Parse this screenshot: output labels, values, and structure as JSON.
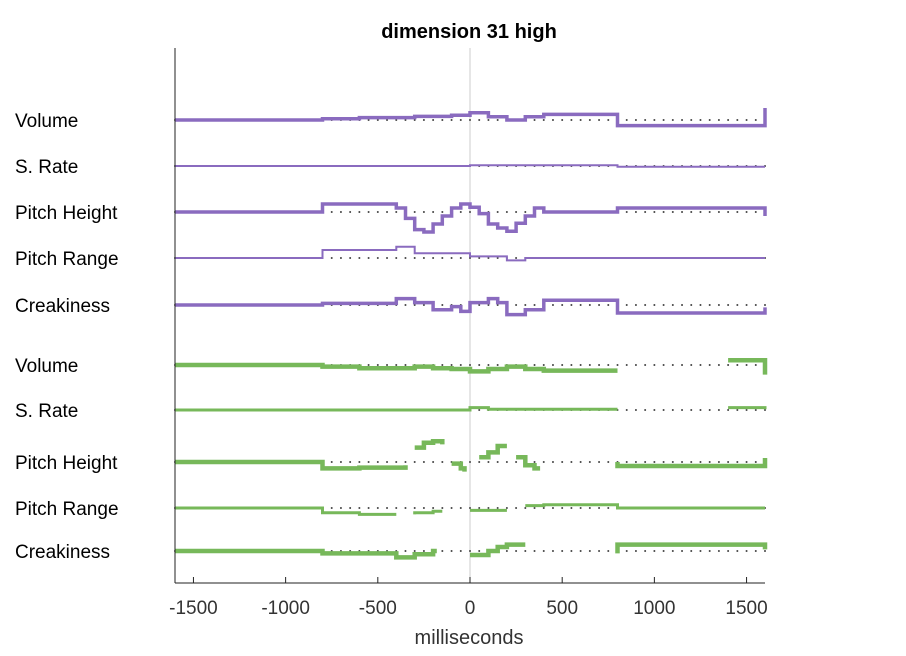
{
  "chart_data": {
    "type": "line",
    "title": "dimension 31 high",
    "xlabel": "milliseconds",
    "xlim": [
      -1600,
      1600
    ],
    "xticks": [
      -1500,
      -1000,
      -500,
      0,
      500,
      1000,
      1500
    ],
    "xtick_labels": [
      "-1500",
      "-1000",
      "-500",
      "0",
      "500",
      "1000",
      "1500"
    ],
    "zero_line": 0,
    "dot_spacing_ms": 50,
    "colors": {
      "purple": "#8a6bbf",
      "green": "#77b85a",
      "dots": "#444444"
    },
    "rows": [
      {
        "label": "Volume",
        "color": "purple",
        "width": 3.5,
        "points": [
          [
            -1600,
            0
          ],
          [
            -800,
            0
          ],
          [
            -800,
            1.5
          ],
          [
            -600,
            1.5
          ],
          [
            -600,
            3
          ],
          [
            -300,
            3
          ],
          [
            -300,
            4.5
          ],
          [
            -100,
            4.5
          ],
          [
            -100,
            6
          ],
          [
            0,
            6
          ],
          [
            0,
            9
          ],
          [
            100,
            9
          ],
          [
            100,
            4
          ],
          [
            200,
            4
          ],
          [
            200,
            0
          ],
          [
            300,
            0
          ],
          [
            300,
            4
          ],
          [
            400,
            4
          ],
          [
            400,
            7
          ],
          [
            800,
            7
          ],
          [
            800,
            -7
          ],
          [
            1600,
            -7
          ],
          [
            1600,
            15
          ]
        ]
      },
      {
        "label": "S. Rate",
        "color": "purple",
        "width": 2.0,
        "points": [
          [
            -1600,
            0
          ],
          [
            0,
            0
          ],
          [
            0,
            1
          ],
          [
            800,
            1
          ],
          [
            800,
            -1
          ],
          [
            1600,
            -1
          ]
        ]
      },
      {
        "label": "Pitch Height",
        "color": "purple",
        "width": 3.5,
        "points": [
          [
            -1600,
            0
          ],
          [
            -800,
            0
          ],
          [
            -800,
            10
          ],
          [
            -400,
            10
          ],
          [
            -400,
            5
          ],
          [
            -350,
            5
          ],
          [
            -350,
            -8
          ],
          [
            -300,
            -8
          ],
          [
            -300,
            -22
          ],
          [
            -250,
            -22
          ],
          [
            -250,
            -25
          ],
          [
            -200,
            -25
          ],
          [
            -200,
            -15
          ],
          [
            -150,
            -15
          ],
          [
            -150,
            -5
          ],
          [
            -100,
            -5
          ],
          [
            -100,
            5
          ],
          [
            -50,
            5
          ],
          [
            -50,
            10
          ],
          [
            0,
            10
          ],
          [
            0,
            6
          ],
          [
            50,
            6
          ],
          [
            50,
            -2
          ],
          [
            100,
            -2
          ],
          [
            100,
            -15
          ],
          [
            150,
            -15
          ],
          [
            150,
            -20
          ],
          [
            200,
            -20
          ],
          [
            200,
            -24
          ],
          [
            250,
            -24
          ],
          [
            250,
            -14
          ],
          [
            300,
            -14
          ],
          [
            300,
            -5
          ],
          [
            350,
            -5
          ],
          [
            350,
            5
          ],
          [
            400,
            5
          ],
          [
            400,
            0
          ],
          [
            800,
            0
          ],
          [
            800,
            5
          ],
          [
            1600,
            5
          ],
          [
            1600,
            -5
          ]
        ]
      },
      {
        "label": "Pitch Range",
        "color": "purple",
        "width": 2.0,
        "points": [
          [
            -1600,
            0
          ],
          [
            -800,
            0
          ],
          [
            -800,
            10
          ],
          [
            -400,
            10
          ],
          [
            -400,
            14
          ],
          [
            -300,
            14
          ],
          [
            -300,
            6
          ],
          [
            0,
            6
          ],
          [
            0,
            2
          ],
          [
            200,
            2
          ],
          [
            200,
            -3
          ],
          [
            300,
            -3
          ],
          [
            300,
            0
          ],
          [
            1600,
            0
          ]
        ]
      },
      {
        "label": "Creakiness",
        "color": "purple",
        "width": 3.5,
        "points": [
          [
            -1600,
            0
          ],
          [
            -800,
            0
          ],
          [
            -800,
            2
          ],
          [
            -400,
            2
          ],
          [
            -400,
            8
          ],
          [
            -300,
            8
          ],
          [
            -300,
            3
          ],
          [
            -200,
            3
          ],
          [
            -200,
            -6
          ],
          [
            -100,
            -6
          ],
          [
            -100,
            -2
          ],
          [
            -50,
            -2
          ],
          [
            -50,
            -8
          ],
          [
            0,
            -8
          ],
          [
            0,
            3
          ],
          [
            100,
            3
          ],
          [
            100,
            8
          ],
          [
            150,
            8
          ],
          [
            150,
            3
          ],
          [
            200,
            3
          ],
          [
            200,
            -12
          ],
          [
            300,
            -12
          ],
          [
            300,
            -6
          ],
          [
            400,
            -6
          ],
          [
            400,
            6
          ],
          [
            800,
            6
          ],
          [
            800,
            -10
          ],
          [
            1600,
            -10
          ],
          [
            1600,
            -3
          ]
        ]
      },
      {
        "label": "Volume",
        "color": "green",
        "width": 4.5,
        "points": [
          [
            -1600,
            0
          ],
          [
            -800,
            0
          ],
          [
            -800,
            -2
          ],
          [
            -600,
            -2
          ],
          [
            -600,
            -4
          ],
          [
            -300,
            -4
          ],
          [
            -300,
            -2
          ],
          [
            -200,
            -2
          ],
          [
            -200,
            -4
          ],
          [
            -100,
            -4
          ],
          [
            -100,
            -5
          ],
          [
            0,
            -5
          ],
          [
            0,
            -8
          ],
          [
            100,
            -8
          ],
          [
            100,
            -5
          ],
          [
            200,
            -5
          ],
          [
            200,
            -2
          ],
          [
            300,
            -2
          ],
          [
            300,
            -5
          ],
          [
            400,
            -5
          ],
          [
            400,
            -7
          ],
          [
            800,
            -7
          ],
          null,
          [
            1400,
            6
          ],
          [
            1600,
            6
          ],
          [
            1600,
            -12
          ]
        ]
      },
      {
        "label": "S. Rate",
        "color": "green",
        "width": 3.0,
        "points": [
          [
            -1600,
            0
          ],
          [
            0,
            0
          ],
          [
            0,
            3
          ],
          [
            100,
            3
          ],
          [
            100,
            1
          ],
          [
            800,
            1
          ],
          null,
          [
            1400,
            3
          ],
          [
            1600,
            3
          ],
          [
            1600,
            1
          ]
        ]
      },
      {
        "label": "Pitch Height",
        "color": "green",
        "width": 4.5,
        "points": [
          [
            -1600,
            0
          ],
          [
            -800,
            0
          ],
          [
            -800,
            -8
          ],
          [
            -600,
            -8
          ],
          [
            -600,
            -7
          ],
          [
            -350,
            -7
          ],
          [
            -350,
            -4
          ],
          null,
          [
            -300,
            18
          ],
          [
            -250,
            18
          ],
          [
            -250,
            24
          ],
          [
            -200,
            24
          ],
          [
            -200,
            26
          ],
          [
            -150,
            26
          ],
          [
            -150,
            22
          ],
          null,
          [
            -100,
            -2
          ],
          [
            -50,
            -2
          ],
          [
            -50,
            -8
          ],
          [
            -30,
            -8
          ],
          [
            -30,
            -12
          ],
          null,
          [
            50,
            6
          ],
          [
            100,
            6
          ],
          [
            100,
            12
          ],
          [
            150,
            12
          ],
          [
            150,
            20
          ],
          [
            200,
            20
          ],
          null,
          [
            250,
            6
          ],
          [
            300,
            6
          ],
          [
            300,
            -4
          ],
          [
            350,
            -4
          ],
          [
            350,
            -8
          ],
          [
            380,
            -8
          ],
          null,
          [
            800,
            0
          ],
          [
            800,
            -5
          ],
          [
            1600,
            -5
          ],
          [
            1600,
            5
          ]
        ]
      },
      {
        "label": "Pitch Range",
        "color": "green",
        "width": 3.0,
        "points": [
          [
            -1600,
            0
          ],
          [
            -800,
            0
          ],
          [
            -800,
            -6
          ],
          [
            -600,
            -6
          ],
          [
            -600,
            -8
          ],
          [
            -400,
            -8
          ],
          null,
          [
            -300,
            -8
          ],
          [
            -300,
            -6
          ],
          [
            -200,
            -6
          ],
          [
            -200,
            -4
          ],
          [
            -150,
            -4
          ],
          null,
          [
            0,
            -3
          ],
          [
            200,
            -3
          ],
          null,
          [
            300,
            3
          ],
          [
            400,
            3
          ],
          [
            400,
            4
          ],
          [
            800,
            4
          ],
          [
            800,
            0
          ],
          [
            1600,
            0
          ]
        ]
      },
      {
        "label": "Creakiness",
        "color": "green",
        "width": 4.5,
        "points": [
          [
            -1600,
            0
          ],
          [
            -800,
            0
          ],
          [
            -800,
            -3
          ],
          [
            -600,
            -3
          ],
          [
            -600,
            -3
          ],
          [
            -400,
            -3
          ],
          [
            -400,
            -8
          ],
          [
            -300,
            -8
          ],
          [
            -300,
            -4
          ],
          [
            -200,
            -4
          ],
          [
            -200,
            0
          ],
          [
            -180,
            0
          ],
          null,
          [
            0,
            -5
          ],
          [
            100,
            -5
          ],
          [
            100,
            0
          ],
          [
            150,
            0
          ],
          [
            150,
            5
          ],
          [
            200,
            5
          ],
          [
            200,
            8
          ],
          [
            300,
            8
          ],
          null,
          [
            800,
            -3
          ],
          [
            800,
            8
          ],
          [
            1600,
            8
          ],
          [
            1600,
            2
          ]
        ]
      }
    ]
  }
}
